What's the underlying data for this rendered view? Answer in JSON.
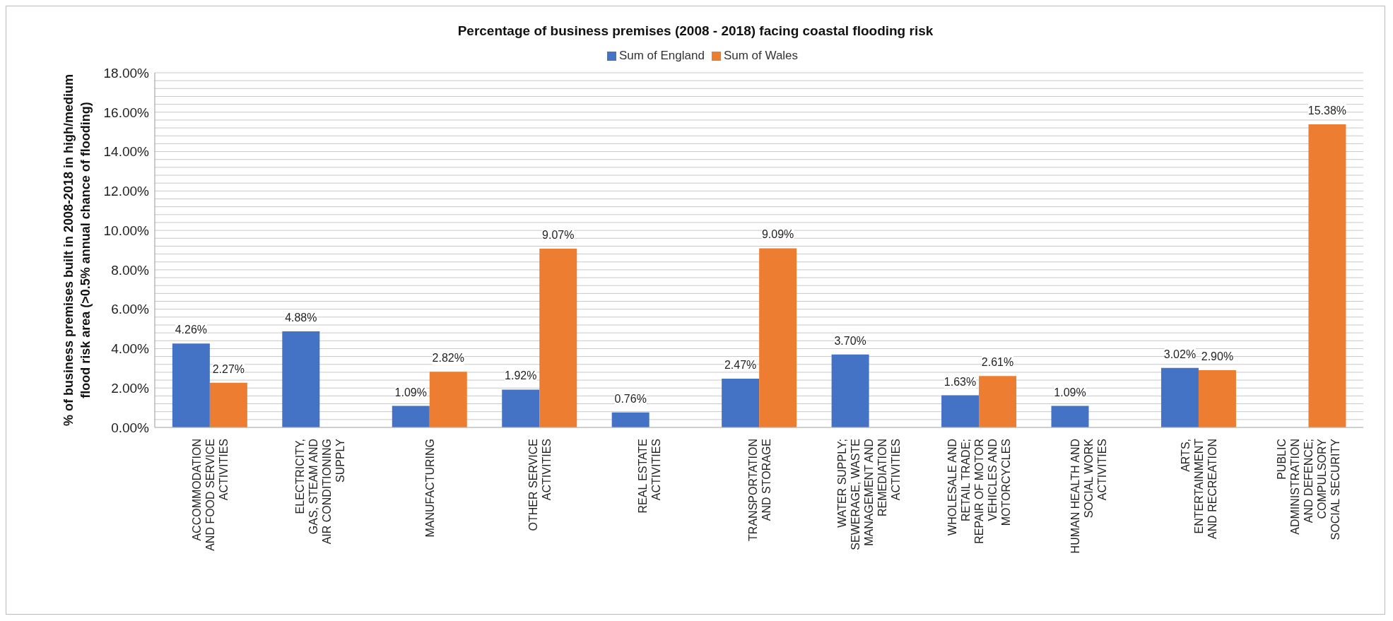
{
  "chart_data": {
    "type": "bar",
    "title": "Percentage of business premises (2008 - 2018) facing coastal flooding risk",
    "ylabel": "% of  business premises built in 2008-2018 in high/medium flood risk area (>0.5% annual chance of flooding)",
    "categories": [
      "ACCOMMODATION AND FOOD SERVICE ACTIVITIES",
      "ELECTRICITY, GAS, STEAM AND AIR CONDITIONING SUPPLY",
      "MANUFACTURING",
      "OTHER SERVICE ACTIVITIES",
      "REAL ESTATE ACTIVITIES",
      "TRANSPORTATION AND STORAGE",
      "WATER SUPPLY; SEWERAGE, WASTE MANAGEMENT AND REMEDIATION ACTIVITIES",
      "WHOLESALE AND RETAIL TRADE; REPAIR OF MOTOR VEHICLES AND MOTORCYCLES",
      "HUMAN HEALTH AND SOCIAL WORK ACTIVITIES",
      "ARTS, ENTERTAINMENT AND RECREATION",
      "PUBLIC ADMINISTRATION AND DEFENCE; COMPULSORY SOCIAL SECURITY"
    ],
    "series": [
      {
        "name": "Sum of England",
        "color": "#4472c4",
        "values": [
          4.26,
          4.88,
          1.09,
          1.92,
          0.76,
          2.47,
          3.7,
          1.63,
          1.09,
          3.02,
          null
        ],
        "value_labels": [
          "4.26%",
          "4.88%",
          "1.09%",
          "1.92%",
          "0.76%",
          "2.47%",
          "3.70%",
          "1.63%",
          "1.09%",
          "3.02%",
          null
        ]
      },
      {
        "name": "Sum of Wales",
        "color": "#ed7d31",
        "values": [
          2.27,
          null,
          2.82,
          9.07,
          null,
          9.09,
          null,
          2.61,
          null,
          2.9,
          15.38
        ],
        "value_labels": [
          "2.27%",
          null,
          "2.82%",
          "9.07%",
          null,
          "9.09%",
          null,
          "2.61%",
          null,
          "2.90%",
          "15.38%"
        ]
      }
    ],
    "ylim": [
      0,
      18
    ],
    "yticks": [
      {
        "value": 0,
        "label": "0.00%"
      },
      {
        "value": 0.4,
        "label": null
      },
      {
        "value": 0.8,
        "label": null
      },
      {
        "value": 1.2,
        "label": null
      },
      {
        "value": 1.6,
        "label": null
      },
      {
        "value": 2,
        "label": "2.00%"
      },
      {
        "value": 2.4,
        "label": null
      },
      {
        "value": 2.8,
        "label": null
      },
      {
        "value": 3.2,
        "label": null
      },
      {
        "value": 3.6,
        "label": null
      },
      {
        "value": 4,
        "label": "4.00%"
      },
      {
        "value": 4.4,
        "label": null
      },
      {
        "value": 4.8,
        "label": null
      },
      {
        "value": 5.2,
        "label": null
      },
      {
        "value": 5.6,
        "label": null
      },
      {
        "value": 6,
        "label": "6.00%"
      },
      {
        "value": 6.4,
        "label": null
      },
      {
        "value": 6.8,
        "label": null
      },
      {
        "value": 7.2,
        "label": null
      },
      {
        "value": 7.6,
        "label": null
      },
      {
        "value": 8,
        "label": "8.00%"
      },
      {
        "value": 8.4,
        "label": null
      },
      {
        "value": 8.8,
        "label": null
      },
      {
        "value": 9.2,
        "label": null
      },
      {
        "value": 9.6,
        "label": null
      },
      {
        "value": 10,
        "label": "10.00%"
      },
      {
        "value": 10.4,
        "label": null
      },
      {
        "value": 10.8,
        "label": null
      },
      {
        "value": 11.2,
        "label": null
      },
      {
        "value": 11.6,
        "label": null
      },
      {
        "value": 12,
        "label": "12.00%"
      },
      {
        "value": 12.4,
        "label": null
      },
      {
        "value": 12.8,
        "label": null
      },
      {
        "value": 13.2,
        "label": null
      },
      {
        "value": 13.6,
        "label": null
      },
      {
        "value": 14,
        "label": "14.00%"
      },
      {
        "value": 14.4,
        "label": null
      },
      {
        "value": 14.8,
        "label": null
      },
      {
        "value": 15.2,
        "label": null
      },
      {
        "value": 15.6,
        "label": null
      },
      {
        "value": 16,
        "label": "16.00%"
      },
      {
        "value": 16.4,
        "label": null
      },
      {
        "value": 16.8,
        "label": null
      },
      {
        "value": 17.2,
        "label": null
      },
      {
        "value": 17.6,
        "label": null
      },
      {
        "value": 18,
        "label": "18.00%"
      }
    ],
    "grid": "y",
    "legend": "top"
  }
}
